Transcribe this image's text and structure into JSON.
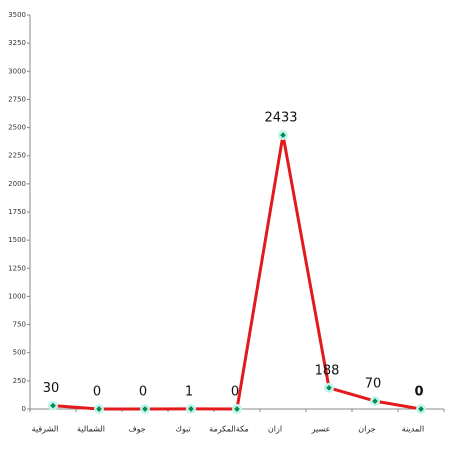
{
  "chart_data": {
    "type": "line",
    "categories": [
      "الشرقية",
      "الشمالية",
      "جوف",
      "تبوك",
      "مكةالمكرمة",
      "ازان",
      "عسير",
      "جران",
      "المدينة"
    ],
    "series": [
      {
        "color": "#e31a1c",
        "values": [
          30,
          0,
          0,
          1,
          0,
          2433,
          188,
          70,
          0
        ]
      }
    ],
    "ylim": [
      0,
      3500
    ],
    "yticks": [
      0,
      250,
      500,
      750,
      1000,
      1250,
      1500,
      1750,
      2000,
      2250,
      2500,
      2750,
      3000,
      3250,
      3500
    ]
  }
}
